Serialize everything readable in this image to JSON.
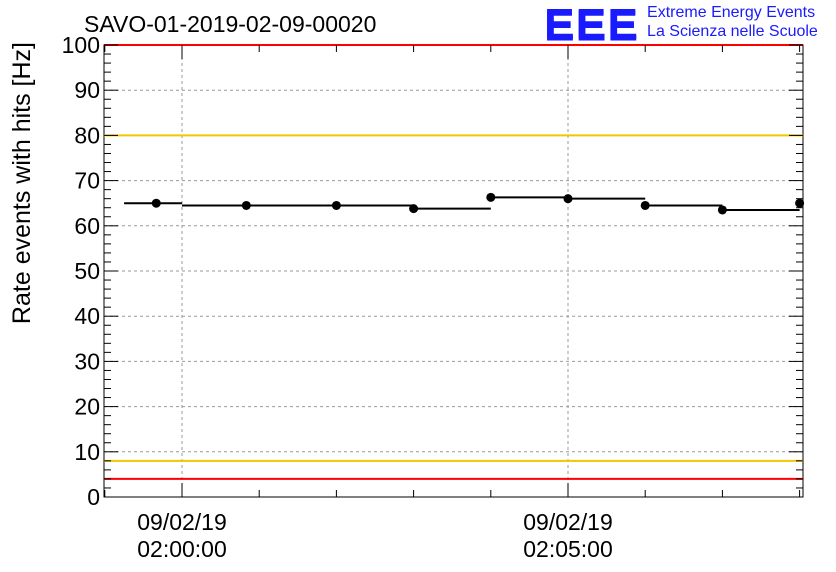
{
  "chart_data": {
    "type": "scatter",
    "title": "SAVO-01-2019-02-09-00020",
    "xlabel": "",
    "ylabel": "Rate events with hits [Hz]",
    "ylim": [
      0,
      100
    ],
    "yticks": [
      0,
      10,
      20,
      30,
      40,
      50,
      60,
      70,
      80,
      90,
      100
    ],
    "xlim": [
      "02:00:00",
      "02:08:01"
    ],
    "xticks": [
      {
        "date": "09/02/19",
        "time": "02:00:00"
      },
      {
        "date": "09/02/19",
        "time": "02:05:00"
      }
    ],
    "grid": true,
    "series": [
      {
        "x": [
          "01:59:40",
          "02:00:50",
          "02:02:00",
          "02:03:00",
          "02:04:00",
          "02:05:00",
          "02:06:00",
          "02:07:00",
          "02:08:00"
        ],
        "x_bins": [
          [
            "01:59:15",
            "02:00:00"
          ],
          [
            "02:00:00",
            "02:01:50"
          ],
          [
            "02:01:50",
            "02:03:00"
          ],
          [
            "02:03:00",
            "02:04:00"
          ],
          [
            "02:04:00",
            "02:05:00"
          ],
          [
            "02:05:00",
            "02:06:00"
          ],
          [
            "02:06:00",
            "02:07:00"
          ],
          [
            "02:07:00",
            "02:08:00"
          ],
          [
            "02:08:00",
            "02:08:01"
          ]
        ],
        "values": [
          65.0,
          64.5,
          64.5,
          63.8,
          66.3,
          66.0,
          64.5,
          63.5,
          65.0
        ]
      }
    ],
    "reference_lines": [
      {
        "y": 100,
        "color": "#ff0000"
      },
      {
        "y": 80,
        "color": "#f0c800"
      },
      {
        "y": 8,
        "color": "#f0c800"
      },
      {
        "y": 4,
        "color": "#ff0000"
      }
    ]
  },
  "logo": {
    "mark": "EEE",
    "line1": "Extreme Energy Events",
    "line2": "La Scienza nelle Scuole",
    "color": "#1a1aff"
  }
}
